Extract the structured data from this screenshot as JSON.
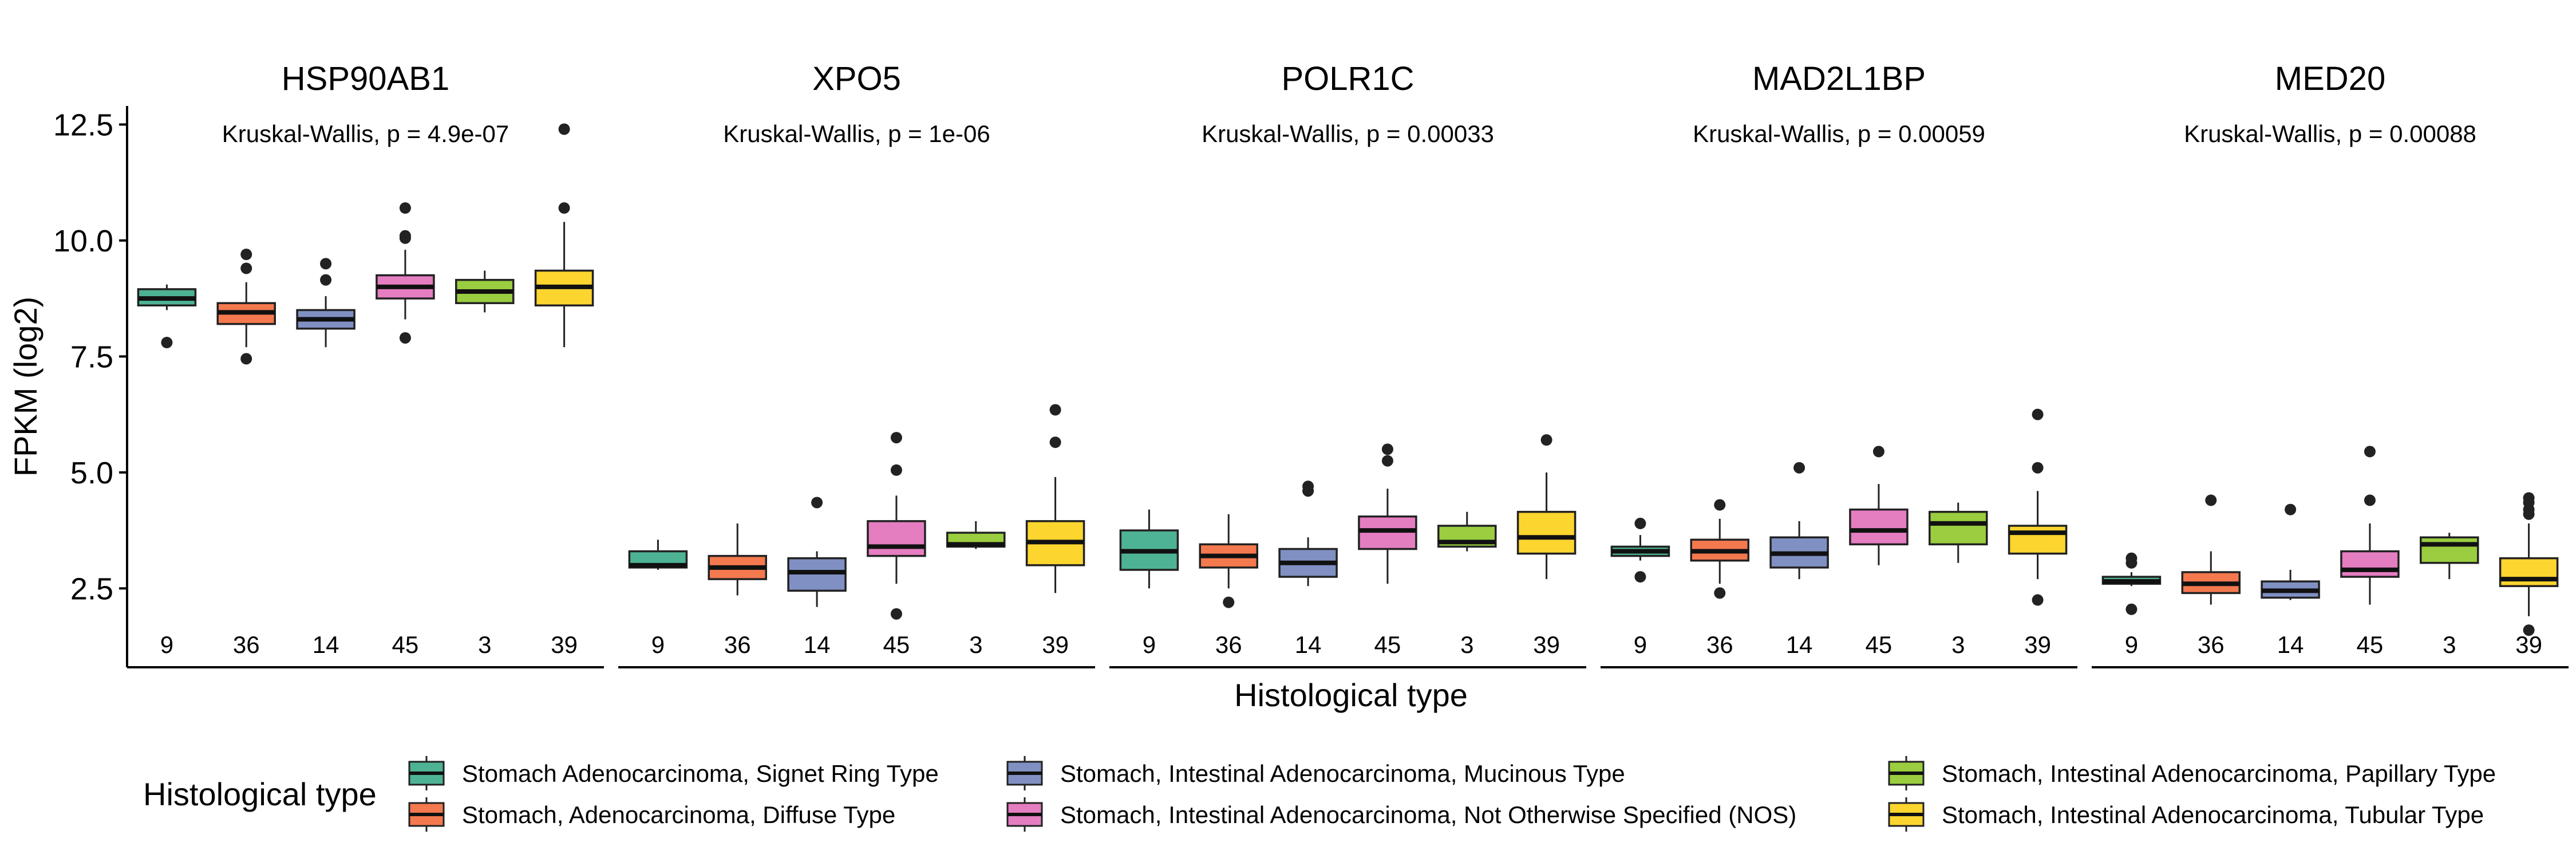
{
  "y_axis": {
    "label": "FPKM (log2)",
    "range": [
      0.8,
      12.9
    ],
    "ticks": [
      2.5,
      5.0,
      7.5,
      10.0,
      12.5
    ],
    "tick_labels": [
      "2.5",
      "5.0",
      "7.5",
      "10.0",
      "12.5"
    ]
  },
  "x_axis": {
    "label": "Histological type"
  },
  "legend": {
    "title": "Histological type",
    "position": "bottom",
    "items": [
      {
        "label": "Stomach Adenocarcinoma, Signet Ring Type",
        "color": "#4EB395"
      },
      {
        "label": "Stomach, Adenocarcinoma, Diffuse Type",
        "color": "#F4794E"
      },
      {
        "label": "Stomach, Intestinal Adenocarcinoma, Mucinous Type",
        "color": "#8090C3"
      },
      {
        "label": "Stomach, Intestinal Adenocarcinoma, Not Otherwise Specified (NOS)",
        "color": "#E57DC1"
      },
      {
        "label": "Stomach, Intestinal Adenocarcinoma, Papillary Type",
        "color": "#9ACD3F"
      },
      {
        "label": "Stomach, Intestinal Adenocarcinoma, Tubular Type",
        "color": "#FDD52F"
      }
    ]
  },
  "sample_counts": [
    "9",
    "36",
    "14",
    "45",
    "3",
    "39"
  ],
  "chart_data": [
    {
      "type": "box",
      "title": "HSP90AB1",
      "annotation": "Kruskal-Wallis, p = 4.9e-07",
      "boxes": [
        {
          "n": "9",
          "min": 8.5,
          "q1": 8.6,
          "median": 8.75,
          "q3": 8.95,
          "max": 9.05,
          "outliers": [
            7.8
          ]
        },
        {
          "n": "36",
          "min": 7.7,
          "q1": 8.2,
          "median": 8.45,
          "q3": 8.65,
          "max": 9.1,
          "outliers": [
            9.4,
            9.7,
            7.45
          ]
        },
        {
          "n": "14",
          "min": 7.7,
          "q1": 8.1,
          "median": 8.3,
          "q3": 8.5,
          "max": 8.8,
          "outliers": [
            9.5,
            9.15
          ]
        },
        {
          "n": "45",
          "min": 8.3,
          "q1": 8.75,
          "median": 9.0,
          "q3": 9.25,
          "max": 9.8,
          "outliers": [
            10.7,
            10.1,
            10.05,
            7.9
          ]
        },
        {
          "n": "3",
          "min": 8.45,
          "q1": 8.65,
          "median": 8.9,
          "q3": 9.15,
          "max": 9.35,
          "outliers": []
        },
        {
          "n": "39",
          "min": 7.7,
          "q1": 8.6,
          "median": 9.0,
          "q3": 9.35,
          "max": 10.4,
          "outliers": [
            12.4,
            10.7
          ]
        }
      ]
    },
    {
      "type": "box",
      "title": "XPO5",
      "annotation": "Kruskal-Wallis, p = 1e-06",
      "boxes": [
        {
          "n": "9",
          "min": 2.9,
          "q1": 2.95,
          "median": 3.0,
          "q3": 3.3,
          "max": 3.55,
          "outliers": []
        },
        {
          "n": "36",
          "min": 2.35,
          "q1": 2.7,
          "median": 2.95,
          "q3": 3.2,
          "max": 3.9,
          "outliers": []
        },
        {
          "n": "14",
          "min": 2.1,
          "q1": 2.45,
          "median": 2.85,
          "q3": 3.15,
          "max": 3.3,
          "outliers": [
            4.35
          ]
        },
        {
          "n": "45",
          "min": 2.6,
          "q1": 3.2,
          "median": 3.4,
          "q3": 3.95,
          "max": 4.5,
          "outliers": [
            5.75,
            5.05,
            1.95
          ]
        },
        {
          "n": "3",
          "min": 3.35,
          "q1": 3.4,
          "median": 3.45,
          "q3": 3.7,
          "max": 3.95,
          "outliers": []
        },
        {
          "n": "39",
          "min": 2.4,
          "q1": 3.0,
          "median": 3.5,
          "q3": 3.95,
          "max": 4.9,
          "outliers": [
            6.35,
            5.65
          ]
        }
      ]
    },
    {
      "type": "box",
      "title": "POLR1C",
      "annotation": "Kruskal-Wallis, p = 0.00033",
      "boxes": [
        {
          "n": "9",
          "min": 2.5,
          "q1": 2.9,
          "median": 3.3,
          "q3": 3.75,
          "max": 4.2,
          "outliers": []
        },
        {
          "n": "36",
          "min": 2.5,
          "q1": 2.95,
          "median": 3.2,
          "q3": 3.45,
          "max": 4.1,
          "outliers": [
            2.2
          ]
        },
        {
          "n": "14",
          "min": 2.55,
          "q1": 2.75,
          "median": 3.05,
          "q3": 3.35,
          "max": 3.6,
          "outliers": [
            4.7,
            4.6
          ]
        },
        {
          "n": "45",
          "min": 2.6,
          "q1": 3.35,
          "median": 3.75,
          "q3": 4.05,
          "max": 4.65,
          "outliers": [
            5.5,
            5.25
          ]
        },
        {
          "n": "3",
          "min": 3.3,
          "q1": 3.4,
          "median": 3.5,
          "q3": 3.85,
          "max": 4.15,
          "outliers": []
        },
        {
          "n": "39",
          "min": 2.7,
          "q1": 3.25,
          "median": 3.6,
          "q3": 4.15,
          "max": 5.0,
          "outliers": [
            5.7
          ]
        }
      ]
    },
    {
      "type": "box",
      "title": "MAD2L1BP",
      "annotation": "Kruskal-Wallis, p = 0.00059",
      "boxes": [
        {
          "n": "9",
          "min": 3.1,
          "q1": 3.2,
          "median": 3.3,
          "q3": 3.4,
          "max": 3.65,
          "outliers": [
            3.9,
            2.75
          ]
        },
        {
          "n": "36",
          "min": 2.6,
          "q1": 3.1,
          "median": 3.3,
          "q3": 3.55,
          "max": 4.0,
          "outliers": [
            4.3,
            2.4
          ]
        },
        {
          "n": "14",
          "min": 2.7,
          "q1": 2.95,
          "median": 3.25,
          "q3": 3.6,
          "max": 3.95,
          "outliers": [
            5.1
          ]
        },
        {
          "n": "45",
          "min": 3.0,
          "q1": 3.45,
          "median": 3.75,
          "q3": 4.2,
          "max": 4.75,
          "outliers": [
            5.45
          ]
        },
        {
          "n": "3",
          "min": 3.05,
          "q1": 3.45,
          "median": 3.9,
          "q3": 4.15,
          "max": 4.35,
          "outliers": []
        },
        {
          "n": "39",
          "min": 2.7,
          "q1": 3.25,
          "median": 3.7,
          "q3": 3.85,
          "max": 4.6,
          "outliers": [
            6.25,
            5.1,
            2.25
          ]
        }
      ]
    },
    {
      "type": "box",
      "title": "MED20",
      "annotation": "Kruskal-Wallis, p = 0.00088",
      "boxes": [
        {
          "n": "9",
          "min": 2.55,
          "q1": 2.6,
          "median": 2.65,
          "q3": 2.75,
          "max": 2.85,
          "outliers": [
            3.15,
            3.05,
            2.05
          ]
        },
        {
          "n": "36",
          "min": 2.15,
          "q1": 2.4,
          "median": 2.6,
          "q3": 2.85,
          "max": 3.3,
          "outliers": [
            4.4
          ]
        },
        {
          "n": "14",
          "min": 2.25,
          "q1": 2.3,
          "median": 2.45,
          "q3": 2.65,
          "max": 2.9,
          "outliers": [
            4.2
          ]
        },
        {
          "n": "45",
          "min": 2.15,
          "q1": 2.75,
          "median": 2.9,
          "q3": 3.3,
          "max": 3.9,
          "outliers": [
            5.45,
            4.4
          ]
        },
        {
          "n": "3",
          "min": 2.7,
          "q1": 3.05,
          "median": 3.45,
          "q3": 3.6,
          "max": 3.7,
          "outliers": []
        },
        {
          "n": "39",
          "min": 1.9,
          "q1": 2.55,
          "median": 2.7,
          "q3": 3.15,
          "max": 3.9,
          "outliers": [
            4.45,
            4.35,
            4.2,
            4.1,
            1.6
          ]
        }
      ]
    }
  ]
}
